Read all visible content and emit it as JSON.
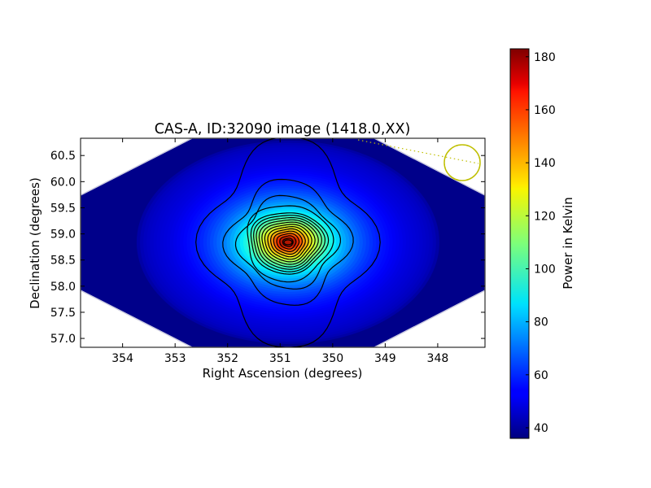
{
  "chart_data": {
    "type": "heatmap",
    "title": "CAS-A, ID:32090 image (1418.0,XX)",
    "xlabel": "Right Ascension (degrees)",
    "ylabel": "Declination (degrees)",
    "xlim": [
      354.8,
      347.1
    ],
    "ylim": [
      56.83,
      60.83
    ],
    "x_reversed": true,
    "x_ticks": [
      354,
      353,
      352,
      351,
      350,
      349,
      348
    ],
    "x_tick_labels": [
      "354",
      "353",
      "352",
      "351",
      "350",
      "349",
      "348"
    ],
    "y_ticks": [
      57.0,
      57.5,
      58.0,
      58.5,
      59.0,
      59.5,
      60.0,
      60.5
    ],
    "y_tick_labels": [
      "57.0",
      "57.5",
      "58.0",
      "58.5",
      "59.0",
      "59.5",
      "60.0",
      "60.5"
    ],
    "colormap": "jet",
    "grid": false,
    "source": {
      "ra": 350.85,
      "dec": 58.84,
      "peak_kelvin": 182,
      "background_kelvin": 37
    },
    "contour_levels": [
      45,
      55,
      65,
      75,
      85,
      95,
      105,
      115,
      125,
      135,
      145,
      155,
      165,
      175
    ],
    "colorbar": {
      "label": "Power in Kelvin",
      "min": 36,
      "max": 183,
      "ticks": [
        40,
        60,
        80,
        100,
        120,
        140,
        160,
        180
      ],
      "tick_labels": [
        "40",
        "60",
        "80",
        "100",
        "120",
        "140",
        "160",
        "180"
      ]
    },
    "beam_marker": {
      "shape": "circle",
      "color": "#bfbf00"
    }
  }
}
